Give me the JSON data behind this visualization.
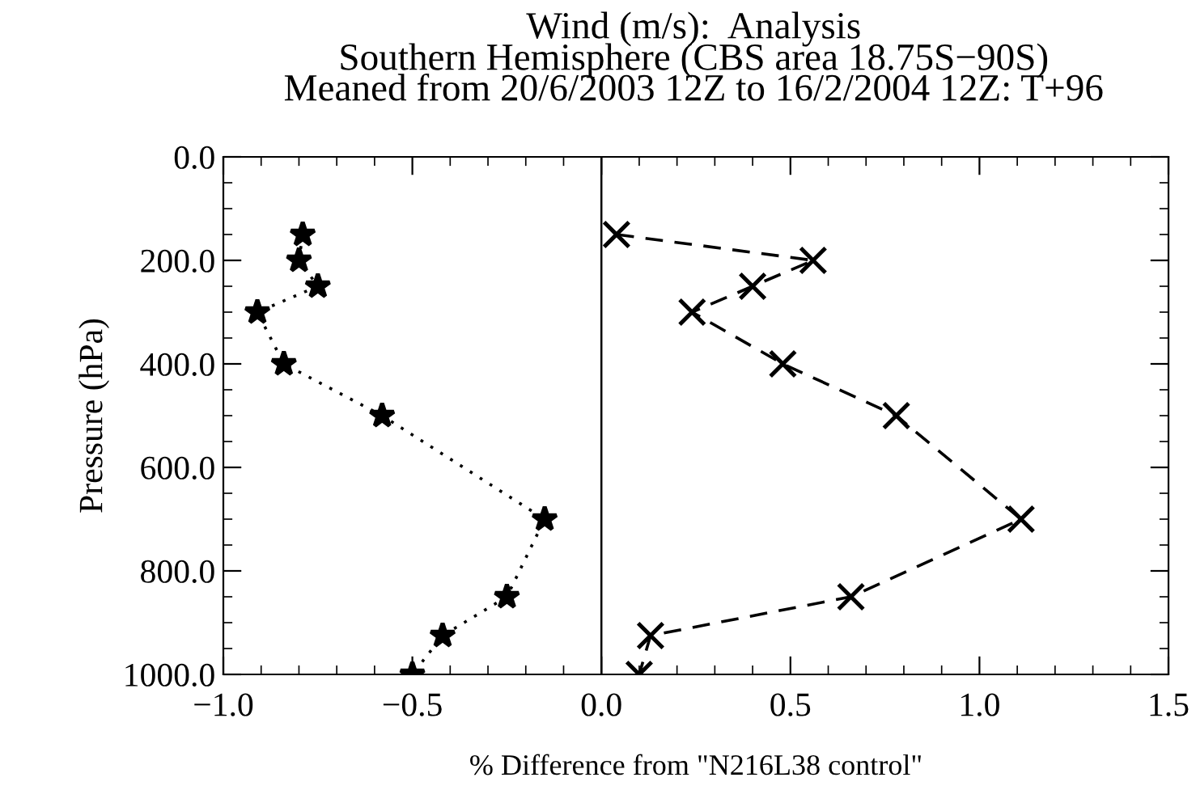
{
  "chart_data": {
    "type": "line",
    "title": "Wind (m/s):  Analysis",
    "subtitle": "Southern Hemisphere (CBS area 18.75S−90S)\nMeaned from 20/6/2003 12Z to 16/2/2004 12Z: T+96",
    "xlabel": "% Difference from \"N216L38 control\"",
    "ylabel": "Pressure (hPa)",
    "series": [
      {
        "color": "#000000",
        "marker": "star",
        "line_style": "dotted",
        "x": [
          -0.79,
          -0.8,
          -0.75,
          -0.91,
          -0.84,
          -0.58,
          -0.15,
          -0.25,
          -0.42,
          -0.5
        ],
        "values": [
          150,
          200,
          250,
          300,
          400,
          500,
          700,
          850,
          925,
          1000
        ]
      },
      {
        "color": "#000000",
        "marker": "cross",
        "line_style": "dashed",
        "x": [
          0.04,
          0.56,
          0.4,
          0.24,
          0.48,
          0.78,
          1.11,
          0.66,
          0.13,
          0.1
        ],
        "values": [
          150,
          200,
          250,
          300,
          400,
          500,
          700,
          850,
          925,
          1000
        ]
      }
    ],
    "xlim": [
      -1.0,
      1.5
    ],
    "xticks": [
      {
        "value": -1.0,
        "label": "−1.0"
      },
      {
        "value": -0.5,
        "label": "−0.5"
      },
      {
        "value": 0.0,
        "label": "0.0"
      },
      {
        "value": 0.5,
        "label": "0.5"
      },
      {
        "value": 1.0,
        "label": "1.0"
      },
      {
        "value": 1.5,
        "label": "1.5"
      }
    ],
    "ylim": [
      1000,
      0
    ],
    "yticks": [
      {
        "value": 0,
        "label": "0.0"
      },
      {
        "value": 200,
        "label": "200.0"
      },
      {
        "value": 400,
        "label": "400.0"
      },
      {
        "value": 600,
        "label": "600.0"
      },
      {
        "value": 800,
        "label": "800.0"
      },
      {
        "value": 1000,
        "label": "1000.0"
      }
    ],
    "ref_lines": [
      {
        "axis": "x",
        "value": 0,
        "color": "#000000",
        "line_style": "solid"
      }
    ],
    "grid": false,
    "legend": false
  }
}
